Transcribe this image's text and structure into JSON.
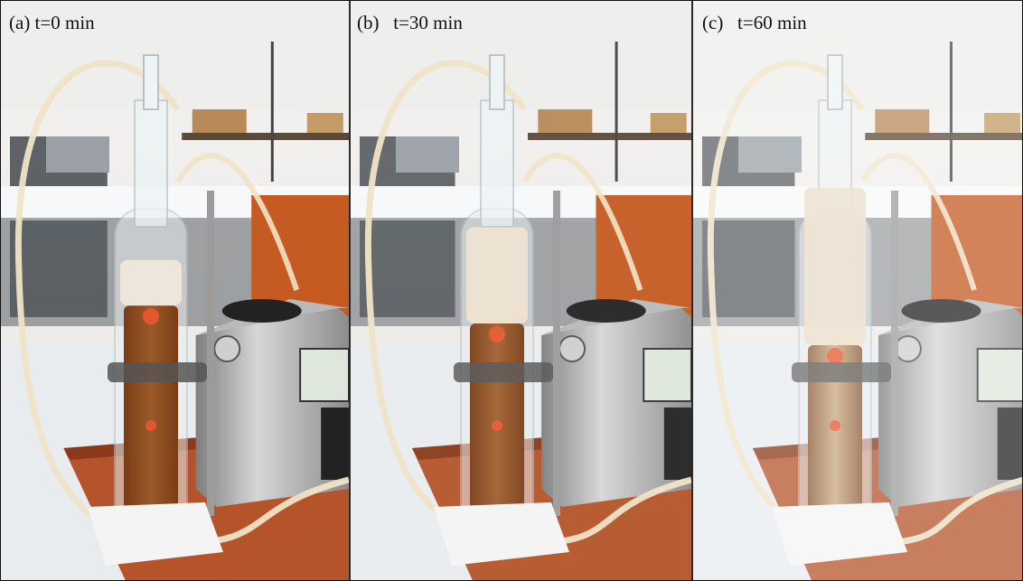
{
  "panels": [
    {
      "label": "(a) t=0 min",
      "foam_level": 0.12,
      "liquid": "#7a3c14",
      "liquid_light": "#9a5a2a",
      "foam": "#f2e8dc"
    },
    {
      "label": "(b)   t=30 min",
      "foam_level": 0.45,
      "liquid": "#7c3f18",
      "liquid_light": "#a06030",
      "foam": "#efe2cf"
    },
    {
      "label": "(c)   t=60 min",
      "foam_level": 0.85,
      "liquid": "#8a5a35",
      "liquid_light": "#c9a882",
      "foam": "#e9dcc8"
    }
  ],
  "icons": {
    "column": "bubble-column-icon",
    "pump": "peristaltic-pump-icon",
    "tube": "silicone-tube-icon",
    "stand": "lab-stand-icon"
  },
  "colors": {
    "wall": "#e8e6e3",
    "bench": "#b5542a",
    "bench_dark": "#8a3a1a",
    "counter": "#e9ecef",
    "steel": "#a9a9a9",
    "tube": "#efe3c6"
  }
}
